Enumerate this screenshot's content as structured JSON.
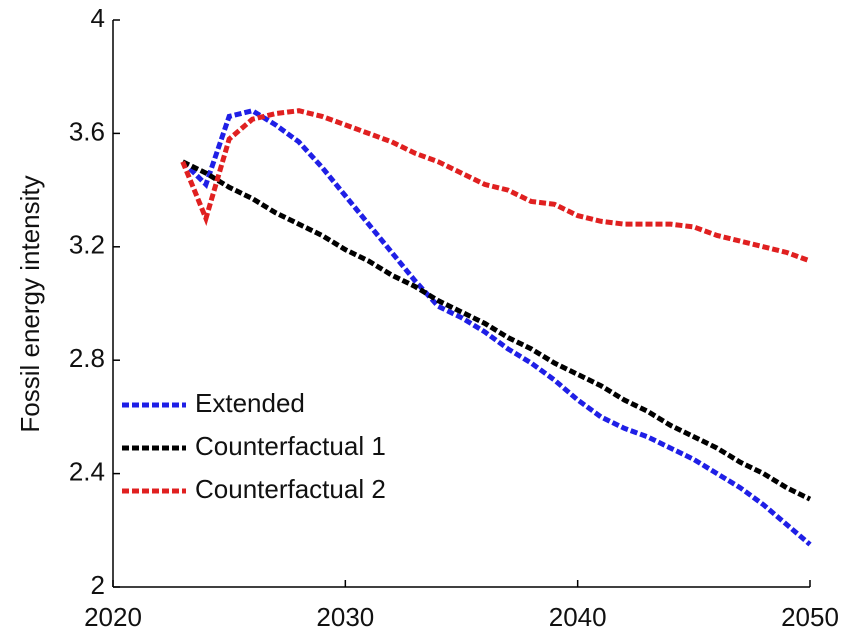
{
  "chart_data": {
    "type": "line",
    "y_label": "Fossil energy intensity",
    "x": [
      2023,
      2024,
      2025,
      2026,
      2027,
      2028,
      2029,
      2030,
      2031,
      2032,
      2033,
      2034,
      2035,
      2036,
      2037,
      2038,
      2039,
      2040,
      2041,
      2042,
      2043,
      2044,
      2045,
      2046,
      2047,
      2048,
      2049,
      2050
    ],
    "series": [
      {
        "name": "Extended",
        "color": "#1f1fe6",
        "values": [
          3.5,
          3.42,
          3.66,
          3.68,
          3.63,
          3.57,
          3.48,
          3.38,
          3.28,
          3.18,
          3.08,
          2.99,
          2.95,
          2.9,
          2.84,
          2.79,
          2.73,
          2.66,
          2.6,
          2.56,
          2.53,
          2.49,
          2.45,
          2.4,
          2.35,
          2.29,
          2.22,
          2.15
        ]
      },
      {
        "name": "Counterfactual 1",
        "color": "#000000",
        "values": [
          3.5,
          3.46,
          3.41,
          3.37,
          3.32,
          3.28,
          3.24,
          3.19,
          3.15,
          3.1,
          3.06,
          3.01,
          2.97,
          2.93,
          2.88,
          2.84,
          2.79,
          2.75,
          2.71,
          2.66,
          2.62,
          2.57,
          2.53,
          2.49,
          2.44,
          2.4,
          2.35,
          2.31
        ]
      },
      {
        "name": "Counterfactual 2",
        "color": "#e02020",
        "values": [
          3.5,
          3.3,
          3.58,
          3.65,
          3.67,
          3.68,
          3.66,
          3.63,
          3.6,
          3.57,
          3.53,
          3.5,
          3.46,
          3.42,
          3.4,
          3.36,
          3.35,
          3.31,
          3.29,
          3.28,
          3.28,
          3.28,
          3.27,
          3.24,
          3.22,
          3.2,
          3.18,
          3.15
        ]
      }
    ],
    "xlim": [
      2020,
      2050
    ],
    "xticks": [
      2020,
      2030,
      2040,
      2050
    ],
    "ylim": [
      2,
      4
    ],
    "yticks": [
      2,
      2.4,
      2.8,
      3.2,
      3.6,
      4
    ],
    "grid": false,
    "legend": "lower-left"
  }
}
